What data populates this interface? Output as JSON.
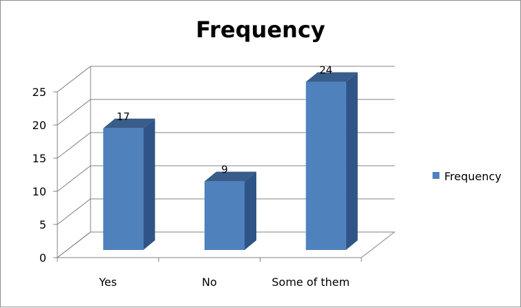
{
  "chart_data": {
    "type": "bar",
    "title": "Frequency",
    "categories": [
      "Yes",
      "No",
      "Some of them"
    ],
    "series": [
      {
        "name": "Frequency",
        "values": [
          17,
          9,
          24
        ]
      }
    ],
    "data_labels": [
      "17",
      "9",
      "24"
    ],
    "yticks": [
      0,
      5,
      10,
      15,
      20,
      25
    ],
    "ylim": [
      0,
      25
    ],
    "grid": true,
    "legend": "right",
    "three_d": true,
    "colors": {
      "bar_front": "#4f81bd",
      "bar_side": "#2f5487",
      "bar_top": "#385d8a",
      "grid": "#808080"
    }
  }
}
